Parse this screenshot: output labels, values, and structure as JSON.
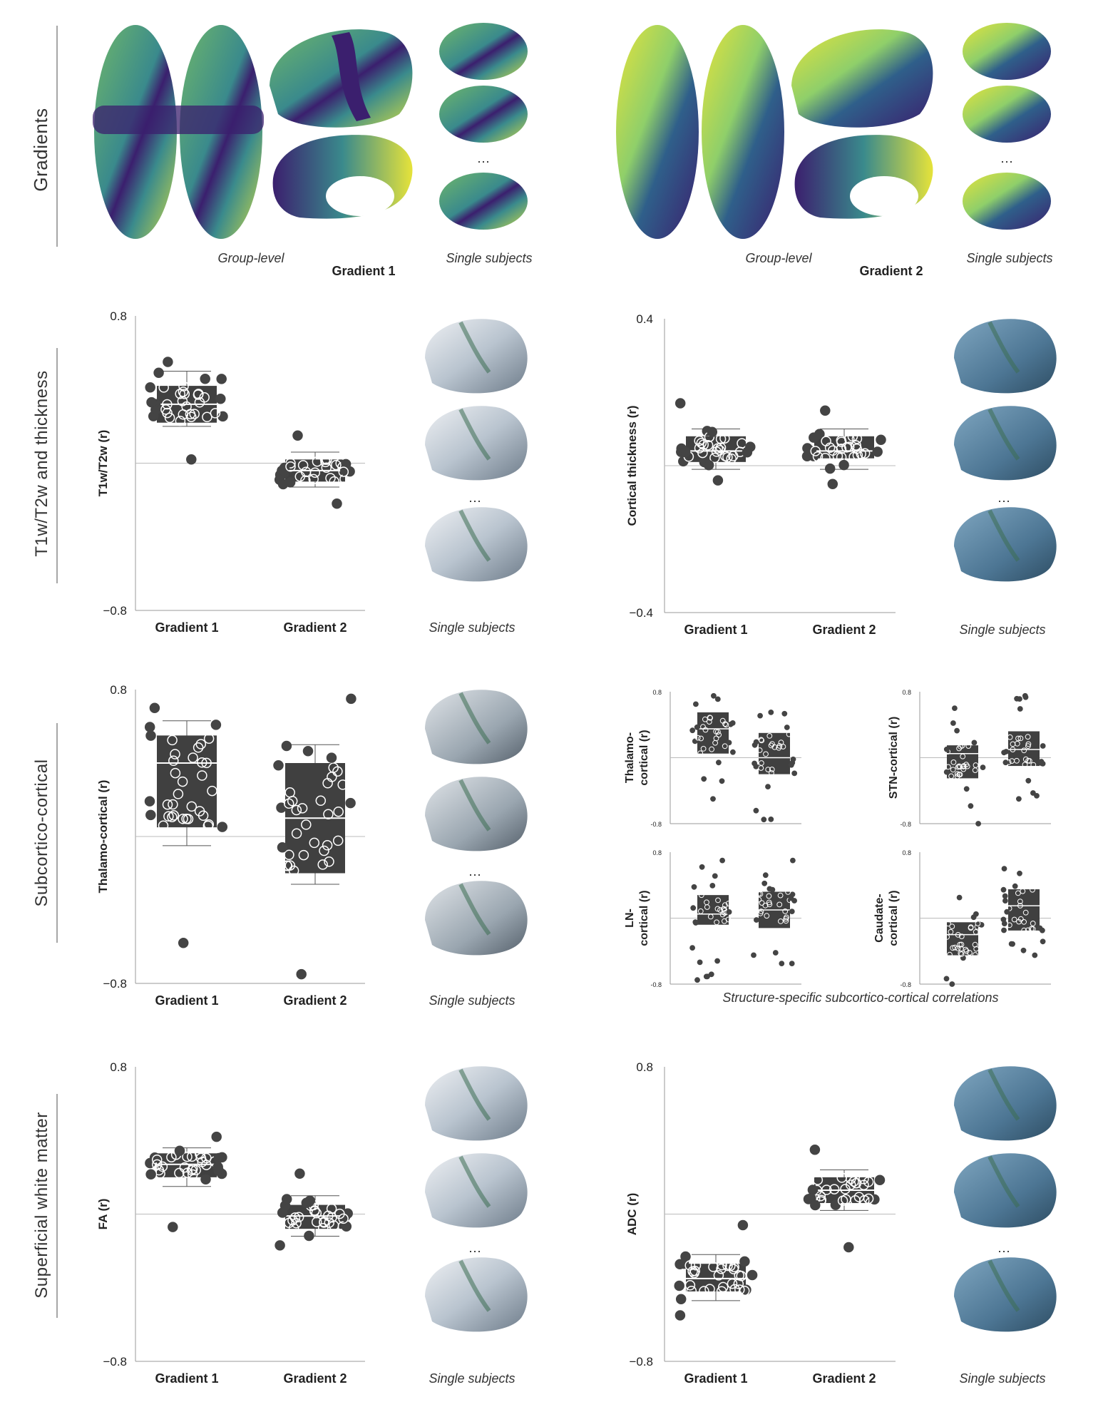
{
  "row_labels": {
    "gradients": "Gradients",
    "t1t2": "T1w/T2w and thickness",
    "subcortical": "Subcortico-cortical",
    "swm": "Superficial white matter"
  },
  "gradient_panels": [
    {
      "group_label": "Group-level",
      "title": "Gradient 1",
      "subject_label": "Single subjects",
      "ellipsis": "···"
    },
    {
      "group_label": "Group-level",
      "title": "Gradient 2",
      "subject_label": "Single subjects",
      "ellipsis": "···"
    }
  ],
  "colors": {
    "viridis_dark": "#3b1f6e",
    "viridis_mid": "#3a8a8c",
    "viridis_light": "#8fcf6a",
    "viridis_yellow": "#e6e33a",
    "box": "#404040",
    "brain_white": "#d9dde2",
    "brain_blue": "#5c8aa8",
    "brain_green": "#3d6e52"
  },
  "chart_data": [
    {
      "type": "box-swarm",
      "ylabel": "T1w/T2w (r)",
      "ylim": [
        -0.8,
        0.8
      ],
      "ytick_labels": [
        "0.8",
        "−0.8"
      ],
      "categories": [
        "Gradient 1",
        "Gradient 2"
      ],
      "series": [
        {
          "median": 0.32,
          "q1": 0.22,
          "q3": 0.42,
          "whisker_low": 0.2,
          "whisker_high": 0.5,
          "n_points": 34,
          "low": 0.02,
          "high": 0.55
        },
        {
          "median": -0.04,
          "q1": -0.1,
          "q3": 0.02,
          "whisker_low": -0.13,
          "whisker_high": 0.06,
          "n_points": 34,
          "low": -0.22,
          "high": 0.15
        }
      ],
      "subject_label": "Single subjects",
      "ellipsis": "···"
    },
    {
      "type": "box-swarm",
      "ylabel": "Cortical thickness (r)",
      "ylim": [
        -0.4,
        0.4
      ],
      "ytick_labels": [
        "0.4",
        "−0.4"
      ],
      "categories": [
        "Gradient 1",
        "Gradient 2"
      ],
      "series": [
        {
          "median": 0.04,
          "q1": 0.01,
          "q3": 0.08,
          "whisker_low": -0.01,
          "whisker_high": 0.1,
          "n_points": 34,
          "low": -0.04,
          "high": 0.17
        },
        {
          "median": 0.04,
          "q1": 0.02,
          "q3": 0.08,
          "whisker_low": -0.01,
          "whisker_high": 0.1,
          "n_points": 34,
          "low": -0.05,
          "high": 0.15
        }
      ],
      "subject_label": "Single subjects",
      "ellipsis": "···"
    },
    {
      "type": "box-swarm",
      "ylabel": "Thalamo-cortical (r)",
      "ylim": [
        -0.8,
        0.8
      ],
      "ytick_labels": [
        "0.8",
        "−0.8"
      ],
      "categories": [
        "Gradient 1",
        "Gradient 2"
      ],
      "series": [
        {
          "median": 0.4,
          "q1": 0.05,
          "q3": 0.55,
          "whisker_low": -0.05,
          "whisker_high": 0.63,
          "n_points": 36,
          "low": -0.58,
          "high": 0.7
        },
        {
          "median": 0.1,
          "q1": -0.2,
          "q3": 0.4,
          "whisker_low": -0.26,
          "whisker_high": 0.5,
          "n_points": 36,
          "low": -0.75,
          "high": 0.75
        }
      ],
      "subject_label": "Single subjects",
      "ellipsis": "···"
    },
    {
      "type": "box-swarm-small-multiples",
      "caption": "Structure-specific subcortico-cortical correlations",
      "ytick_labels": [
        "0.8",
        "-0.8"
      ],
      "ylim": [
        -0.8,
        0.8
      ],
      "panels": [
        {
          "ylabel_line1": "Thalamo-",
          "ylabel_line2": "cortical (r)",
          "series": [
            {
              "median": 0.35,
              "q1": 0.05,
              "q3": 0.55,
              "low": -0.5,
              "high": 0.75
            },
            {
              "median": 0.0,
              "q1": -0.2,
              "q3": 0.3,
              "low": -0.75,
              "high": 0.55
            }
          ]
        },
        {
          "ylabel_line1": "",
          "ylabel_line2": "STN-cortical (r)",
          "series": [
            {
              "median": 0.05,
              "q1": -0.25,
              "q3": 0.15,
              "low": -0.8,
              "high": 0.6
            },
            {
              "median": 0.1,
              "q1": -0.1,
              "q3": 0.32,
              "low": -0.5,
              "high": 0.75
            }
          ]
        },
        {
          "ylabel_line1": "LN-",
          "ylabel_line2": "cortical (r)",
          "series": [
            {
              "median": 0.05,
              "q1": -0.08,
              "q3": 0.28,
              "low": -0.75,
              "high": 0.7
            },
            {
              "median": 0.1,
              "q1": -0.12,
              "q3": 0.32,
              "low": -0.55,
              "high": 0.7
            }
          ]
        },
        {
          "ylabel_line1": "Caudate-",
          "ylabel_line2": "cortical (r)",
          "series": [
            {
              "median": -0.2,
              "q1": -0.45,
              "q3": -0.05,
              "low": -0.8,
              "high": 0.25
            },
            {
              "median": 0.15,
              "q1": -0.15,
              "q3": 0.35,
              "low": -0.45,
              "high": 0.6
            }
          ]
        }
      ]
    },
    {
      "type": "box-swarm",
      "ylabel": "FA (r)",
      "ylim": [
        -0.8,
        0.8
      ],
      "ytick_labels": [
        "0.8",
        "−0.8"
      ],
      "categories": [
        "Gradient 1",
        "Gradient 2"
      ],
      "series": [
        {
          "median": 0.27,
          "q1": 0.2,
          "q3": 0.33,
          "whisker_low": 0.15,
          "whisker_high": 0.36,
          "n_points": 34,
          "low": -0.07,
          "high": 0.42
        },
        {
          "median": -0.01,
          "q1": -0.08,
          "q3": 0.05,
          "whisker_low": -0.12,
          "whisker_high": 0.1,
          "n_points": 34,
          "low": -0.17,
          "high": 0.22
        }
      ],
      "subject_label": "Single subjects",
      "ellipsis": "···"
    },
    {
      "type": "box-swarm",
      "ylabel": "ADC (r)",
      "ylim": [
        -0.8,
        0.8
      ],
      "ytick_labels": [
        "0.8",
        "−0.8"
      ],
      "categories": [
        "Gradient 1",
        "Gradient 2"
      ],
      "series": [
        {
          "median": -0.35,
          "q1": -0.42,
          "q3": -0.27,
          "whisker_low": -0.47,
          "whisker_high": -0.22,
          "n_points": 36,
          "low": -0.55,
          "high": -0.06
        },
        {
          "median": 0.13,
          "q1": 0.06,
          "q3": 0.2,
          "whisker_low": 0.02,
          "whisker_high": 0.24,
          "n_points": 34,
          "low": -0.18,
          "high": 0.35
        }
      ],
      "subject_label": "Single subjects",
      "ellipsis": "···"
    }
  ]
}
